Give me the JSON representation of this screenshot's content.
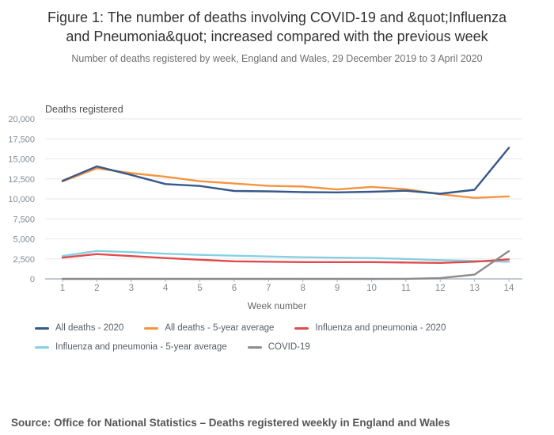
{
  "header": {
    "title": "Figure 1: The number of deaths involving COVID-19 and &quot;Influenza and Pneumonia&quot; increased compared with the previous week",
    "subtitle": "Number of deaths registered by week, England and Wales, 29 December 2019 to 3 April 2020"
  },
  "chart_data": {
    "type": "line",
    "y_axis_title": "Deaths registered",
    "x_axis_title": "Week number",
    "x_categories": [
      1,
      2,
      3,
      4,
      5,
      6,
      7,
      8,
      9,
      10,
      11,
      12,
      13,
      14
    ],
    "ylim": [
      0,
      20000
    ],
    "y_ticks": [
      {
        "value": 0,
        "label": "0"
      },
      {
        "value": 2500,
        "label": "2,500"
      },
      {
        "value": 5000,
        "label": "5,000"
      },
      {
        "value": 7500,
        "label": "7,500"
      },
      {
        "value": 10000,
        "label": "10,000"
      },
      {
        "value": 12500,
        "label": "12,500"
      },
      {
        "value": 15000,
        "label": "15,000"
      },
      {
        "value": 17500,
        "label": "17,500"
      },
      {
        "value": 20000,
        "label": "20,000"
      }
    ],
    "grid": "horizontal",
    "legend_position": "bottom",
    "series": [
      {
        "name": "All deaths - 2020",
        "color": "#36598c",
        "values": [
          12254,
          14058,
          12990,
          11856,
          11612,
          10986,
          10944,
          10841,
          10816,
          10895,
          11019,
          10645,
          11141,
          16387
        ]
      },
      {
        "name": "All deaths - 5-year average",
        "color": "#f59440",
        "values": [
          12175,
          13822,
          13216,
          12760,
          12206,
          11925,
          11627,
          11548,
          11183,
          11498,
          11205,
          10573,
          10130,
          10305
        ]
      },
      {
        "name": "Influenza and pneumonia - 2020",
        "color": "#e14b4b",
        "values": [
          2650,
          3100,
          2850,
          2600,
          2400,
          2200,
          2150,
          2100,
          2100,
          2100,
          2050,
          2000,
          2150,
          2450
        ]
      },
      {
        "name": "Influenza and pneumonia - 5-year average",
        "color": "#87cfe2",
        "values": [
          2850,
          3500,
          3350,
          3150,
          3000,
          2900,
          2800,
          2700,
          2650,
          2600,
          2500,
          2350,
          2250,
          2150
        ]
      },
      {
        "name": "COVID-19",
        "color": "#8c8c8c",
        "values": [
          0,
          0,
          0,
          0,
          0,
          0,
          0,
          0,
          0,
          0,
          5,
          103,
          539,
          3475
        ]
      }
    ]
  },
  "footer": {
    "source": "Source: Office for National Statistics – Deaths registered weekly in England and Wales"
  }
}
